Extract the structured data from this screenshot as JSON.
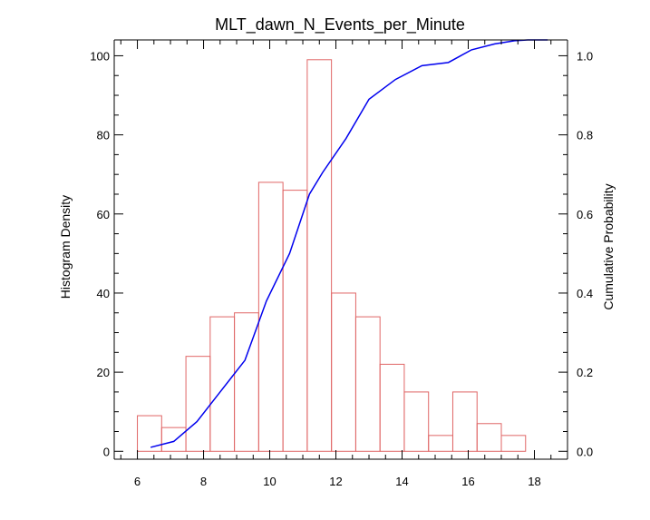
{
  "chart_data": {
    "type": "bar",
    "title": "MLT_dawn_N_Events_per_Minute",
    "xlabel": "",
    "ylabel": "Histogram Density",
    "y2label": "Cumulative Probability",
    "xlim": [
      5.3,
      19.0
    ],
    "ylim": [
      -2,
      104
    ],
    "y2lim": [
      -0.02,
      1.04
    ],
    "x_ticks": [
      6,
      8,
      10,
      12,
      14,
      16,
      18
    ],
    "y_ticks": [
      0,
      20,
      40,
      60,
      80,
      100
    ],
    "y2_ticks": [
      0.0,
      0.2,
      0.4,
      0.6,
      0.8,
      1.0
    ],
    "y2_tick_labels": [
      "0.0",
      "0.2",
      "0.4",
      "0.6",
      "0.8",
      "1.0"
    ],
    "bar_width": 0.733,
    "bar_color": "#e06666",
    "histogram": {
      "bin_left": [
        6.0,
        6.733,
        7.467,
        8.2,
        8.933,
        9.667,
        10.4,
        11.133,
        11.867,
        12.6,
        13.333,
        14.067,
        14.8,
        15.533,
        16.267,
        17.0
      ],
      "values": [
        9,
        6,
        24,
        34,
        35,
        68,
        66,
        99,
        40,
        34,
        22,
        15,
        4,
        15,
        7,
        4
      ]
    },
    "series": [
      {
        "kind": "line",
        "axis": "y2",
        "color": "#0000ee",
        "x": [
          6.4,
          7.1,
          7.8,
          8.5,
          9.25,
          9.9,
          10.6,
          11.2,
          11.6,
          12.3,
          13.0,
          13.8,
          14.6,
          15.4,
          16.1,
          16.8,
          17.4,
          17.8,
          18.4
        ],
        "y": [
          0.01,
          0.025,
          0.075,
          0.15,
          0.23,
          0.38,
          0.5,
          0.65,
          0.705,
          0.79,
          0.89,
          0.94,
          0.975,
          0.983,
          1.015,
          1.03,
          1.038,
          1.04,
          1.04
        ]
      }
    ]
  }
}
